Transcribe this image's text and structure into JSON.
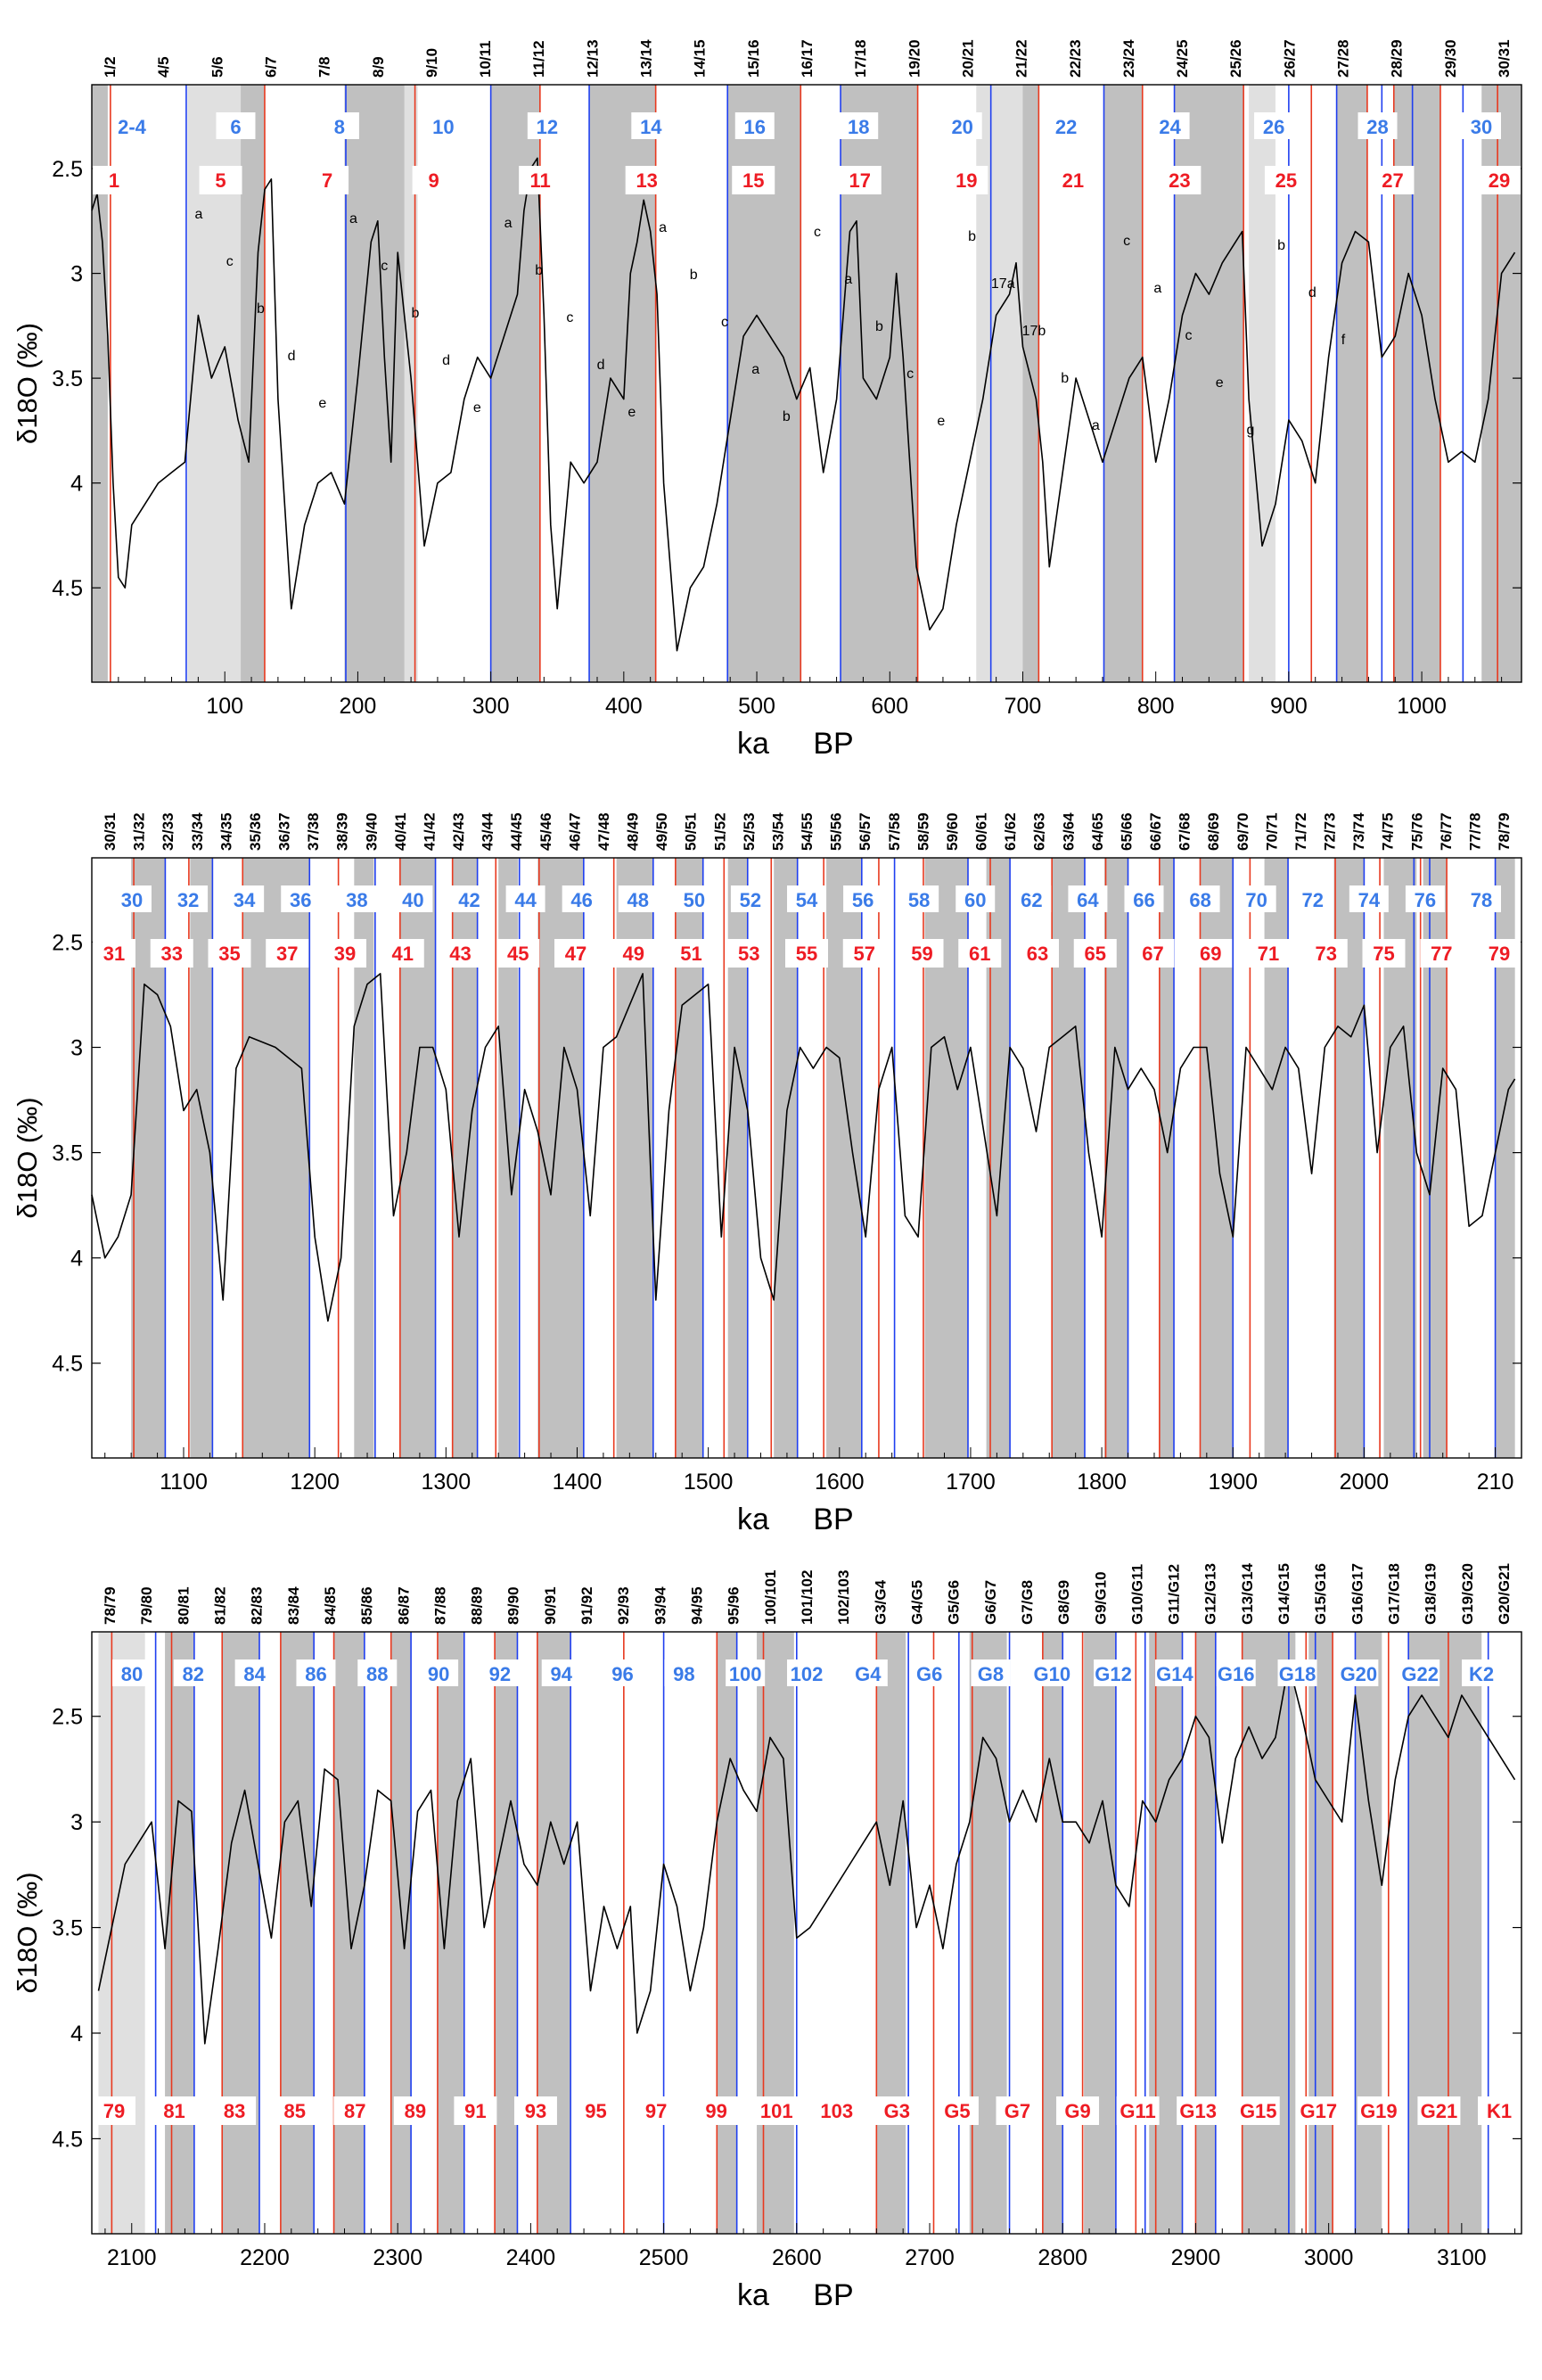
{
  "colors": {
    "glacial_shade": "#c0c0c0",
    "glacial_shade_light": "#e0e0e0",
    "red_line": "#e8391f",
    "blue_line": "#1f3ff0",
    "odd_label": "#ee1c24",
    "even_label": "#3a7be8",
    "curve": "#000000",
    "letter_label": "#000000"
  },
  "axes": {
    "ylabel": "δ18O (‰)",
    "xlabel_ka": "ka",
    "xlabel_bp": "BP",
    "y_ticks": [
      "2.5",
      "3",
      "3.5",
      "4",
      "4.5"
    ]
  },
  "chart_data": [
    {
      "type": "line",
      "panel": "top",
      "xlabel": "ka BP",
      "ylabel": "δ18O (‰)",
      "xlim": [
        0,
        1075
      ],
      "ylim": [
        4.95,
        2.1
      ],
      "x_ticks": [
        "100",
        "200",
        "300",
        "400",
        "500",
        "600",
        "700",
        "800",
        "900",
        "1000"
      ],
      "boundary_labels": [
        "1/2",
        "4/5",
        "5/6",
        "6/7",
        "7/8",
        "8/9",
        "9/10",
        "10/11",
        "11/12",
        "12/13",
        "13/14",
        "14/15",
        "15/16",
        "16/17",
        "17/18",
        "19/20",
        "20/21",
        "21/22",
        "22/23",
        "23/24",
        "24/25",
        "25/26",
        "26/27",
        "27/28",
        "28/29",
        "29/30",
        "30/31"
      ],
      "stage_labels_even": [
        "2-4",
        "6",
        "8",
        "10",
        "12",
        "14",
        "16",
        "18",
        "20",
        "22",
        "24",
        "26",
        "28",
        "30"
      ],
      "stage_labels_odd": [
        "1",
        "5",
        "7",
        "9",
        "11",
        "13",
        "15",
        "17",
        "19",
        "21",
        "23",
        "25",
        "27",
        "29"
      ],
      "substage_labels": [
        "a",
        "c",
        "b",
        "d",
        "e",
        "a",
        "c",
        "b",
        "d",
        "e",
        "a",
        "b",
        "c",
        "d",
        "e",
        "a",
        "b",
        "c",
        "a",
        "b",
        "c",
        "a",
        "b",
        "c",
        "e",
        "b",
        "17a",
        "17b",
        "b",
        "a",
        "c",
        "a",
        "c",
        "e",
        "g",
        "b",
        "d",
        "f"
      ],
      "series": [
        {
          "x": [
            0,
            4,
            8,
            12,
            16,
            20,
            25,
            30,
            40,
            50,
            60,
            70,
            80,
            90,
            100,
            110,
            118,
            125,
            130,
            135,
            140,
            150,
            160,
            170,
            180,
            190,
            200,
            210,
            215,
            220,
            225,
            230,
            240,
            250,
            260,
            270,
            280,
            290,
            300,
            310,
            320,
            325,
            330,
            335,
            340,
            345,
            350,
            360,
            370,
            380,
            390,
            400,
            405,
            410,
            415,
            420,
            425,
            430,
            440,
            450,
            460,
            470,
            480,
            490,
            500,
            510,
            520,
            530,
            540,
            550,
            560,
            570,
            575,
            580,
            590,
            600,
            605,
            610,
            620,
            630,
            640,
            650,
            660,
            670,
            680,
            690,
            695,
            700,
            710,
            715,
            720,
            730,
            740,
            750,
            760,
            770,
            780,
            790,
            800,
            810,
            820,
            830,
            840,
            850,
            860,
            865,
            870,
            880,
            890,
            900,
            910,
            920,
            930,
            940,
            950,
            960,
            970,
            980,
            990,
            1000,
            1010,
            1020,
            1030,
            1040,
            1050,
            1060,
            1070
          ],
          "y": [
            2.7,
            2.62,
            2.85,
            3.3,
            4.0,
            4.45,
            4.5,
            4.2,
            4.1,
            4.0,
            3.95,
            3.9,
            3.2,
            3.5,
            3.35,
            3.7,
            3.9,
            2.9,
            2.6,
            2.55,
            3.6,
            4.6,
            4.2,
            4.0,
            3.95,
            4.1,
            3.5,
            2.85,
            2.75,
            3.4,
            3.9,
            2.9,
            3.5,
            4.3,
            4.0,
            3.95,
            3.6,
            3.4,
            3.5,
            3.3,
            3.1,
            2.7,
            2.5,
            2.45,
            3.2,
            4.2,
            4.6,
            3.9,
            4.0,
            3.9,
            3.5,
            3.6,
            3.0,
            2.85,
            2.65,
            2.8,
            3.1,
            4.0,
            4.8,
            4.5,
            4.4,
            4.1,
            3.7,
            3.3,
            3.2,
            3.3,
            3.4,
            3.6,
            3.45,
            3.95,
            3.6,
            2.8,
            2.75,
            3.5,
            3.6,
            3.4,
            3.0,
            3.4,
            4.4,
            4.7,
            4.6,
            4.2,
            3.9,
            3.6,
            3.2,
            3.1,
            2.95,
            3.35,
            3.6,
            3.9,
            4.4,
            3.95,
            3.5,
            3.7,
            3.9,
            3.7,
            3.5,
            3.4,
            3.9,
            3.6,
            3.2,
            3.0,
            3.1,
            2.95,
            2.85,
            2.8,
            3.6,
            4.3,
            4.1,
            3.7,
            3.8,
            4.0,
            3.4,
            2.95,
            2.8,
            2.85,
            3.4,
            3.3,
            3.0,
            3.2,
            3.6,
            3.9,
            3.85,
            3.9,
            3.6,
            3.0,
            2.9
          ]
        }
      ]
    },
    {
      "type": "line",
      "panel": "middle",
      "xlabel": "ka BP",
      "ylabel": "δ18O (‰)",
      "xlim": [
        1030,
        2120
      ],
      "ylim": [
        4.95,
        2.1
      ],
      "x_ticks": [
        "1100",
        "1200",
        "1300",
        "1400",
        "1500",
        "1600",
        "1700",
        "1800",
        "1900",
        "2000",
        "210"
      ],
      "boundary_labels": [
        "30/31",
        "31/32",
        "32/33",
        "33/34",
        "34/35",
        "35/36",
        "36/37",
        "37/38",
        "38/39",
        "39/40",
        "40/41",
        "41/42",
        "42/43",
        "43/44",
        "44/45",
        "45/46",
        "46/47",
        "47/48",
        "48/49",
        "49/50",
        "50/51",
        "51/52",
        "52/53",
        "53/54",
        "54/55",
        "55/56",
        "56/57",
        "57/58",
        "58/59",
        "59/60",
        "60/61",
        "61/62",
        "62/63",
        "63/64",
        "64/65",
        "65/66",
        "66/67",
        "67/68",
        "68/69",
        "69/70",
        "70/71",
        "71/72",
        "72/73",
        "73/74",
        "74/75",
        "75/76",
        "76/77",
        "77/78",
        "78/79"
      ],
      "stage_labels_even": [
        "30",
        "32",
        "34",
        "36",
        "38",
        "40",
        "42",
        "44",
        "46",
        "48",
        "50",
        "52",
        "54",
        "56",
        "58",
        "60",
        "62",
        "64",
        "66",
        "68",
        "70",
        "72",
        "74",
        "76",
        "78"
      ],
      "stage_labels_odd": [
        "31",
        "33",
        "35",
        "37",
        "39",
        "41",
        "43",
        "45",
        "47",
        "49",
        "51",
        "53",
        "55",
        "57",
        "59",
        "61",
        "63",
        "65",
        "67",
        "69",
        "71",
        "73",
        "75",
        "77",
        "79"
      ],
      "series": [
        {
          "x": [
            1030,
            1040,
            1050,
            1060,
            1070,
            1080,
            1090,
            1100,
            1110,
            1120,
            1130,
            1140,
            1150,
            1170,
            1190,
            1200,
            1210,
            1220,
            1230,
            1240,
            1250,
            1260,
            1270,
            1280,
            1290,
            1300,
            1310,
            1320,
            1330,
            1340,
            1350,
            1360,
            1370,
            1380,
            1390,
            1400,
            1410,
            1420,
            1430,
            1440,
            1450,
            1460,
            1470,
            1480,
            1490,
            1500,
            1510,
            1520,
            1530,
            1540,
            1550,
            1560,
            1570,
            1580,
            1590,
            1600,
            1610,
            1620,
            1630,
            1640,
            1650,
            1660,
            1670,
            1680,
            1690,
            1700,
            1710,
            1720,
            1730,
            1740,
            1750,
            1760,
            1770,
            1780,
            1790,
            1800,
            1810,
            1820,
            1830,
            1840,
            1850,
            1860,
            1870,
            1880,
            1890,
            1900,
            1910,
            1920,
            1930,
            1940,
            1950,
            1960,
            1970,
            1980,
            1990,
            2000,
            2010,
            2020,
            2030,
            2040,
            2050,
            2060,
            2070,
            2080,
            2090,
            2100,
            2110,
            2115
          ],
          "y": [
            3.7,
            4.0,
            3.9,
            3.7,
            2.7,
            2.75,
            2.9,
            3.3,
            3.2,
            3.5,
            4.2,
            3.1,
            2.95,
            3.0,
            3.1,
            3.9,
            4.3,
            4.0,
            2.9,
            2.7,
            2.65,
            3.8,
            3.5,
            3.0,
            3.0,
            3.2,
            3.9,
            3.3,
            3.0,
            2.9,
            3.7,
            3.2,
            3.4,
            3.7,
            3.0,
            3.2,
            3.8,
            3.0,
            2.95,
            2.8,
            2.65,
            4.2,
            3.3,
            2.8,
            2.75,
            2.7,
            3.9,
            3.0,
            3.3,
            4.0,
            4.2,
            3.3,
            3.0,
            3.1,
            3.0,
            3.05,
            3.5,
            3.9,
            3.2,
            3.0,
            3.8,
            3.9,
            3.0,
            2.95,
            3.2,
            3.0,
            3.4,
            3.8,
            3.0,
            3.1,
            3.4,
            3.0,
            2.95,
            2.9,
            3.5,
            3.9,
            3.0,
            3.2,
            3.1,
            3.2,
            3.5,
            3.1,
            3.0,
            3.0,
            3.6,
            3.9,
            3.0,
            3.1,
            3.2,
            3.0,
            3.1,
            3.6,
            3.0,
            2.9,
            2.95,
            2.8,
            3.5,
            3.0,
            2.9,
            3.5,
            3.7,
            3.1,
            3.2,
            3.85,
            3.8,
            3.5,
            3.2,
            3.15
          ]
        }
      ]
    },
    {
      "type": "line",
      "panel": "bottom",
      "xlabel": "ka BP",
      "ylabel": "δ18O (‰)",
      "xlim": [
        2070,
        3145
      ],
      "ylim": [
        4.95,
        2.1
      ],
      "x_ticks": [
        "2100",
        "2200",
        "2300",
        "2400",
        "2500",
        "2600",
        "2700",
        "2800",
        "2900",
        "3000",
        "3100"
      ],
      "boundary_labels": [
        "78/79",
        "79/80",
        "80/81",
        "81/82",
        "82/83",
        "83/84",
        "84/85",
        "85/86",
        "86/87",
        "87/88",
        "88/89",
        "89/90",
        "90/91",
        "91/92",
        "92/93",
        "93/94",
        "94/95",
        "95/96",
        "100/101",
        "101/102",
        "102/103",
        "G3/G4",
        "G4/G5",
        "G5/G6",
        "G6/G7",
        "G7/G8",
        "G8/G9",
        "G9/G10",
        "G10/G11",
        "G11/G12",
        "G12/G13",
        "G13/G14",
        "G14/G15",
        "G15/G16",
        "G16/G17",
        "G17/G18",
        "G18/G19",
        "G19/G20",
        "G20/G21"
      ],
      "stage_labels_even": [
        "80",
        "82",
        "84",
        "86",
        "88",
        "90",
        "92",
        "94",
        "96",
        "98",
        "100",
        "102",
        "G4",
        "G6",
        "G8",
        "G10",
        "G12",
        "G14",
        "G16",
        "G18",
        "G20",
        "G22",
        "K2"
      ],
      "stage_labels_odd": [
        "79",
        "81",
        "83",
        "85",
        "87",
        "89",
        "91",
        "93",
        "95",
        "97",
        "99",
        "101",
        "103",
        "G3",
        "G5",
        "G7",
        "G9",
        "G11",
        "G13",
        "G15",
        "G17",
        "G19",
        "G21",
        "K1"
      ],
      "series": [
        {
          "x": [
            2075,
            2085,
            2095,
            2105,
            2115,
            2125,
            2135,
            2145,
            2155,
            2165,
            2175,
            2185,
            2195,
            2205,
            2215,
            2225,
            2235,
            2245,
            2255,
            2265,
            2275,
            2285,
            2295,
            2305,
            2315,
            2325,
            2335,
            2345,
            2355,
            2365,
            2375,
            2385,
            2395,
            2405,
            2415,
            2425,
            2435,
            2445,
            2455,
            2465,
            2475,
            2480,
            2490,
            2500,
            2510,
            2520,
            2530,
            2540,
            2550,
            2560,
            2570,
            2580,
            2590,
            2600,
            2610,
            2620,
            2630,
            2640,
            2650,
            2660,
            2670,
            2680,
            2690,
            2700,
            2710,
            2720,
            2730,
            2740,
            2750,
            2760,
            2770,
            2780,
            2790,
            2800,
            2810,
            2820,
            2830,
            2840,
            2850,
            2860,
            2870,
            2880,
            2890,
            2900,
            2910,
            2920,
            2930,
            2940,
            2950,
            2960,
            2970,
            2980,
            2990,
            3000,
            3010,
            3020,
            3030,
            3040,
            3050,
            3060,
            3070,
            3080,
            3090,
            3100,
            3110,
            3120,
            3130,
            3140
          ],
          "y": [
            3.8,
            3.5,
            3.2,
            3.1,
            3.0,
            3.6,
            2.9,
            2.95,
            4.05,
            3.6,
            3.1,
            2.85,
            3.2,
            3.55,
            3.0,
            2.9,
            3.4,
            2.75,
            2.8,
            3.6,
            3.3,
            2.85,
            2.9,
            3.6,
            2.95,
            2.85,
            3.6,
            2.9,
            2.7,
            3.5,
            3.2,
            2.9,
            3.2,
            3.3,
            3.0,
            3.2,
            3.0,
            3.8,
            3.4,
            3.6,
            3.4,
            4.0,
            3.8,
            3.2,
            3.4,
            3.8,
            3.5,
            3.0,
            2.7,
            2.85,
            2.95,
            2.6,
            2.7,
            3.55,
            3.5,
            3.4,
            3.3,
            3.2,
            3.1,
            3.0,
            3.3,
            2.9,
            3.5,
            3.3,
            3.6,
            3.2,
            3.0,
            2.6,
            2.7,
            3.0,
            2.85,
            3.0,
            2.7,
            3.0,
            3.0,
            3.1,
            2.9,
            3.3,
            3.4,
            2.9,
            3.0,
            2.8,
            2.7,
            2.5,
            2.6,
            3.1,
            2.7,
            2.55,
            2.7,
            2.6,
            2.25,
            2.5,
            2.8,
            2.9,
            3.0,
            2.4,
            2.9,
            3.3,
            2.8,
            2.5,
            2.4,
            2.5,
            2.6,
            2.4,
            2.5,
            2.6,
            2.7,
            2.8
          ]
        }
      ]
    }
  ]
}
